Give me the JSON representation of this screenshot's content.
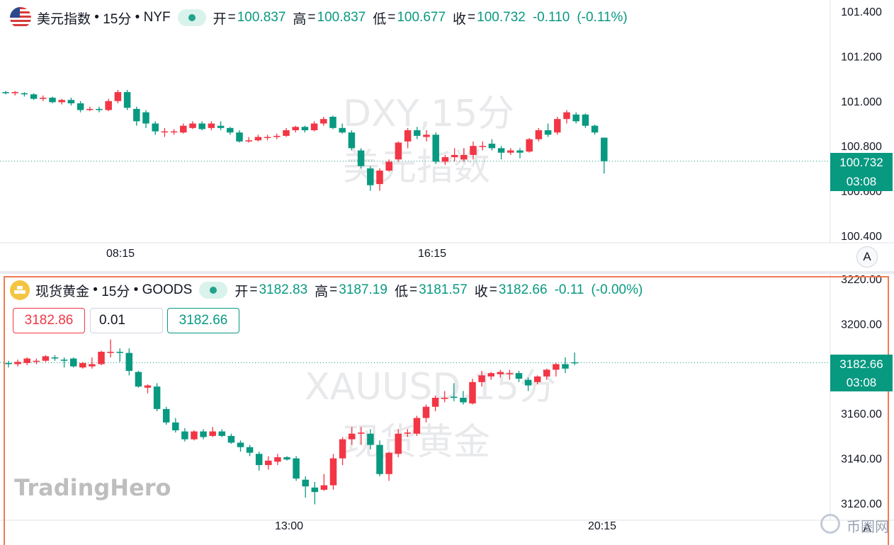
{
  "chart_data": [
    {
      "type": "candlestick",
      "symbol": "美元指数",
      "interval": "15分",
      "exchange": "NYF",
      "watermark": [
        "DXY,15分",
        "美元指数"
      ],
      "legend": {
        "open_label": "开",
        "open": "100.837",
        "high_label": "高",
        "high": "100.837",
        "low_label": "低",
        "low": "100.677",
        "close_label": "收",
        "close": "100.732",
        "change": "-0.110",
        "change_pct": "(-0.11%)"
      },
      "ylim": [
        100.38,
        101.42
      ],
      "yticks": [
        "101.400",
        "101.200",
        "101.000",
        "100.800",
        "100.600",
        "100.400"
      ],
      "xticks": [
        "08:15",
        "16:15"
      ],
      "last_price_tag": "100.732",
      "countdown": "03:08",
      "candles": [
        [
          101.04,
          101.045,
          101.03,
          101.035
        ],
        [
          101.035,
          101.045,
          101.025,
          101.04
        ],
        [
          101.035,
          101.04,
          101.02,
          101.03
        ],
        [
          101.03,
          101.035,
          101.005,
          101.01
        ],
        [
          101.01,
          101.025,
          101.0,
          101.015
        ],
        [
          101.015,
          101.02,
          100.99,
          100.995
        ],
        [
          100.995,
          101.01,
          100.985,
          101.005
        ],
        [
          101.005,
          101.015,
          100.98,
          100.99
        ],
        [
          100.99,
          101.0,
          100.95,
          100.96
        ],
        [
          100.965,
          100.975,
          100.955,
          100.965
        ],
        [
          100.965,
          100.975,
          100.95,
          100.96
        ],
        [
          100.96,
          101.01,
          100.955,
          101.0
        ],
        [
          101.0,
          101.05,
          100.99,
          101.04
        ],
        [
          101.04,
          101.05,
          100.96,
          100.97
        ],
        [
          100.965,
          100.975,
          100.89,
          100.91
        ],
        [
          100.95,
          100.96,
          100.88,
          100.9
        ],
        [
          100.9,
          100.91,
          100.85,
          100.865
        ],
        [
          100.865,
          100.88,
          100.84,
          100.865
        ],
        [
          100.865,
          100.875,
          100.85,
          100.865
        ],
        [
          100.86,
          100.9,
          100.855,
          100.89
        ],
        [
          100.88,
          100.91,
          100.875,
          100.9
        ],
        [
          100.9,
          100.91,
          100.87,
          100.875
        ],
        [
          100.88,
          100.91,
          100.87,
          100.9
        ],
        [
          100.89,
          100.91,
          100.87,
          100.88
        ],
        [
          100.88,
          100.885,
          100.85,
          100.86
        ],
        [
          100.86,
          100.87,
          100.815,
          100.82
        ],
        [
          100.82,
          100.84,
          100.815,
          100.825
        ],
        [
          100.825,
          100.85,
          100.82,
          100.84
        ],
        [
          100.84,
          100.85,
          100.825,
          100.84
        ],
        [
          100.84,
          100.855,
          100.83,
          100.845
        ],
        [
          100.845,
          100.88,
          100.84,
          100.87
        ],
        [
          100.87,
          100.89,
          100.86,
          100.885
        ],
        [
          100.885,
          100.89,
          100.86,
          100.87
        ],
        [
          100.87,
          100.91,
          100.865,
          100.9
        ],
        [
          100.9,
          100.93,
          100.89,
          100.92
        ],
        [
          100.93,
          100.935,
          100.875,
          100.88
        ],
        [
          100.88,
          100.9,
          100.855,
          100.86
        ],
        [
          100.86,
          100.87,
          100.78,
          100.79
        ],
        [
          100.78,
          100.79,
          100.7,
          100.71
        ],
        [
          100.7,
          100.71,
          100.6,
          100.625
        ],
        [
          100.63,
          100.7,
          100.6,
          100.69
        ],
        [
          100.69,
          100.74,
          100.685,
          100.73
        ],
        [
          100.74,
          100.82,
          100.73,
          100.815
        ],
        [
          100.82,
          100.88,
          100.79,
          100.87
        ],
        [
          100.87,
          100.885,
          100.83,
          100.845
        ],
        [
          100.84,
          100.87,
          100.82,
          100.85
        ],
        [
          100.85,
          100.86,
          100.72,
          100.73
        ],
        [
          100.73,
          100.76,
          100.715,
          100.75
        ],
        [
          100.75,
          100.79,
          100.73,
          100.76
        ],
        [
          100.74,
          100.79,
          100.73,
          100.76
        ],
        [
          100.76,
          100.82,
          100.74,
          100.8
        ],
        [
          100.8,
          100.82,
          100.78,
          100.8
        ],
        [
          100.81,
          100.83,
          100.78,
          100.79
        ],
        [
          100.79,
          100.8,
          100.74,
          100.77
        ],
        [
          100.77,
          100.79,
          100.76,
          100.78
        ],
        [
          100.78,
          100.79,
          100.745,
          100.77
        ],
        [
          100.775,
          100.835,
          100.77,
          100.83
        ],
        [
          100.83,
          100.88,
          100.82,
          100.87
        ],
        [
          100.87,
          100.9,
          100.84,
          100.85
        ],
        [
          100.86,
          100.93,
          100.85,
          100.92
        ],
        [
          100.92,
          100.96,
          100.9,
          100.95
        ],
        [
          100.94,
          100.95,
          100.9,
          100.91
        ],
        [
          100.94,
          100.945,
          100.88,
          100.89
        ],
        [
          100.89,
          100.895,
          100.85,
          100.86
        ],
        [
          100.837,
          100.837,
          100.677,
          100.732
        ]
      ]
    },
    {
      "type": "candlestick",
      "symbol": "现货黄金",
      "interval": "15分",
      "exchange": "GOODS",
      "watermark": [
        "XAUUSD,15分",
        "现货黄金"
      ],
      "legend": {
        "open_label": "开",
        "open": "3182.83",
        "high_label": "高",
        "high": "3187.19",
        "low_label": "低",
        "low": "3181.57",
        "close_label": "收",
        "close": "3182.66",
        "change": "-0.11",
        "change_pct": "(-0.00%)"
      },
      "ylim": [
        3117.5,
        3221.5
      ],
      "yticks": [
        "3220.00",
        "3200.00",
        "3180.00",
        "3160.00",
        "3140.00",
        "3120.00"
      ],
      "xticks": [
        "13:00",
        "20:15"
      ],
      "last_price_tag": "3182.66",
      "countdown": "03:08",
      "trade": {
        "sell": "3182.86",
        "qty": "0.01",
        "buy": "3182.66"
      },
      "candles": [
        [
          3182.5,
          3183.5,
          3180.5,
          3182.0
        ],
        [
          3182.0,
          3184.0,
          3181.0,
          3183.0
        ],
        [
          3182.5,
          3185.0,
          3181.5,
          3184.5
        ],
        [
          3183.0,
          3184.5,
          3182.0,
          3183.5
        ],
        [
          3183.5,
          3186.0,
          3183.0,
          3185.5
        ],
        [
          3185.0,
          3186.0,
          3183.5,
          3184.5
        ],
        [
          3184.0,
          3185.0,
          3180.5,
          3183.5
        ],
        [
          3184.5,
          3185.0,
          3180.5,
          3181.0
        ],
        [
          3180.5,
          3183.0,
          3180.0,
          3182.5
        ],
        [
          3181.0,
          3185.0,
          3180.0,
          3182.0
        ],
        [
          3182.0,
          3188.0,
          3181.5,
          3187.5
        ],
        [
          3187.0,
          3193.0,
          3185.0,
          3187.5
        ],
        [
          3187.5,
          3189.0,
          3183.0,
          3187.0
        ],
        [
          3187.0,
          3189.0,
          3177.0,
          3179.0
        ],
        [
          3178.5,
          3179.0,
          3171.5,
          3172.0
        ],
        [
          3171.5,
          3173.0,
          3169.0,
          3172.5
        ],
        [
          3172.0,
          3173.5,
          3161.0,
          3162.0
        ],
        [
          3162.0,
          3163.0,
          3155.0,
          3156.0
        ],
        [
          3156.0,
          3158.0,
          3151.5,
          3152.5
        ],
        [
          3152.0,
          3153.5,
          3147.5,
          3148.5
        ],
        [
          3148.5,
          3152.5,
          3148.0,
          3152.0
        ],
        [
          3152.0,
          3153.0,
          3148.5,
          3149.5
        ],
        [
          3150.0,
          3154.0,
          3149.5,
          3152.0
        ],
        [
          3152.0,
          3153.0,
          3149.5,
          3150.0
        ],
        [
          3150.0,
          3151.0,
          3146.5,
          3147.0
        ],
        [
          3147.0,
          3148.0,
          3143.0,
          3145.0
        ],
        [
          3145.0,
          3146.0,
          3141.0,
          3142.5
        ],
        [
          3142.0,
          3143.0,
          3134.5,
          3137.0
        ],
        [
          3137.0,
          3141.0,
          3135.0,
          3139.0
        ],
        [
          3138.5,
          3142.0,
          3137.0,
          3140.5
        ],
        [
          3140.5,
          3141.0,
          3139.0,
          3139.5
        ],
        [
          3140.0,
          3141.0,
          3130.0,
          3131.0
        ],
        [
          3130.5,
          3132.0,
          3122.5,
          3127.5
        ],
        [
          3127.0,
          3129.5,
          3119.5,
          3125.0
        ],
        [
          3126.0,
          3133.0,
          3125.5,
          3128.0
        ],
        [
          3128.0,
          3142.0,
          3126.0,
          3140.0
        ],
        [
          3140.0,
          3149.5,
          3137.0,
          3148.5
        ],
        [
          3148.5,
          3154.0,
          3146.0,
          3151.0
        ],
        [
          3151.0,
          3154.0,
          3146.0,
          3151.5
        ],
        [
          3151.0,
          3153.0,
          3144.0,
          3146.0
        ],
        [
          3146.0,
          3148.0,
          3132.0,
          3133.0
        ],
        [
          3133.0,
          3143.0,
          3130.0,
          3142.5
        ],
        [
          3142.0,
          3153.0,
          3140.5,
          3151.0
        ],
        [
          3151.0,
          3153.0,
          3149.5,
          3151.5
        ],
        [
          3151.0,
          3159.0,
          3150.0,
          3158.0
        ],
        [
          3158.0,
          3164.0,
          3156.0,
          3163.0
        ],
        [
          3163.0,
          3168.0,
          3161.0,
          3167.0
        ],
        [
          3166.5,
          3170.0,
          3165.0,
          3167.0
        ],
        [
          3167.5,
          3173.5,
          3165.5,
          3167.0
        ],
        [
          3167.0,
          3170.0,
          3164.0,
          3165.0
        ],
        [
          3164.5,
          3175.5,
          3164.0,
          3174.0
        ],
        [
          3174.0,
          3179.0,
          3172.0,
          3177.0
        ],
        [
          3176.5,
          3178.5,
          3175.0,
          3178.0
        ],
        [
          3177.5,
          3179.5,
          3176.0,
          3178.5
        ],
        [
          3178.0,
          3179.5,
          3175.0,
          3178.0
        ],
        [
          3178.0,
          3179.0,
          3174.0,
          3175.5
        ],
        [
          3175.0,
          3176.0,
          3170.0,
          3172.5
        ],
        [
          3174.0,
          3177.0,
          3173.0,
          3176.5
        ],
        [
          3176.5,
          3180.0,
          3175.0,
          3179.5
        ],
        [
          3179.5,
          3182.5,
          3176.5,
          3182.0
        ],
        [
          3182.0,
          3185.0,
          3178.0,
          3180.0
        ],
        [
          3182.83,
          3187.19,
          3181.57,
          3182.66
        ]
      ]
    }
  ],
  "brand": "TradingHero",
  "site": "币圈网",
  "autoscale_label": "A",
  "colors": {
    "up": "#f23645",
    "down": "#089981",
    "text": "#131722",
    "grid": "#f0f3fa",
    "axis_text": "#131722",
    "frame": "#f07a55"
  }
}
